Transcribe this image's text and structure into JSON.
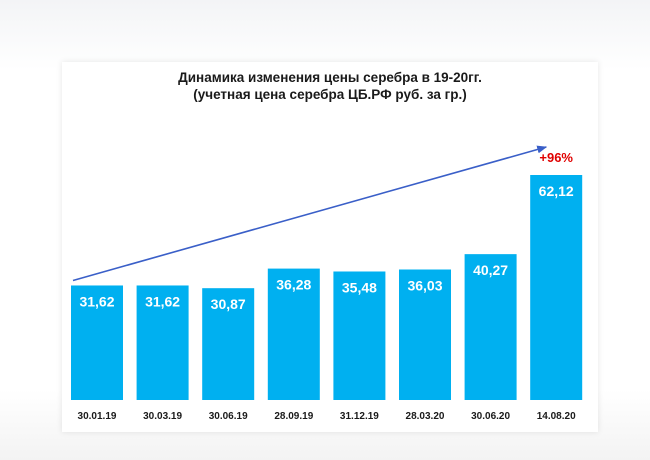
{
  "chart_data": {
    "type": "bar",
    "title": "Динамика изменения цены серебра в 19-20гг.",
    "subtitle": "(учетная цена серебра  ЦБ.РФ руб. за гр.)",
    "categories": [
      "30.01.19",
      "30.03.19",
      "30.06.19",
      "28.09.19",
      "31.12.19",
      "28.03.20",
      "30.06.20",
      "14.08.20"
    ],
    "values": [
      31.62,
      31.62,
      30.87,
      36.28,
      35.48,
      36.03,
      40.27,
      62.12
    ],
    "value_labels": [
      "31,62",
      "31,62",
      "30,87",
      "36,28",
      "35,48",
      "36,03",
      "40,27",
      "62,12"
    ],
    "annotation": "+96%",
    "trend_arrow": {
      "from_category": "30.01.19",
      "to_category": "14.08.20"
    },
    "ylim": [
      0,
      70
    ],
    "grid": false,
    "legend": "none",
    "colors": {
      "bar": "#00b0f0",
      "value_label": "#ffffff",
      "annotation": "#e00000",
      "arrow": "#3a5fc8",
      "axis_label": "#1a1a1a"
    }
  }
}
